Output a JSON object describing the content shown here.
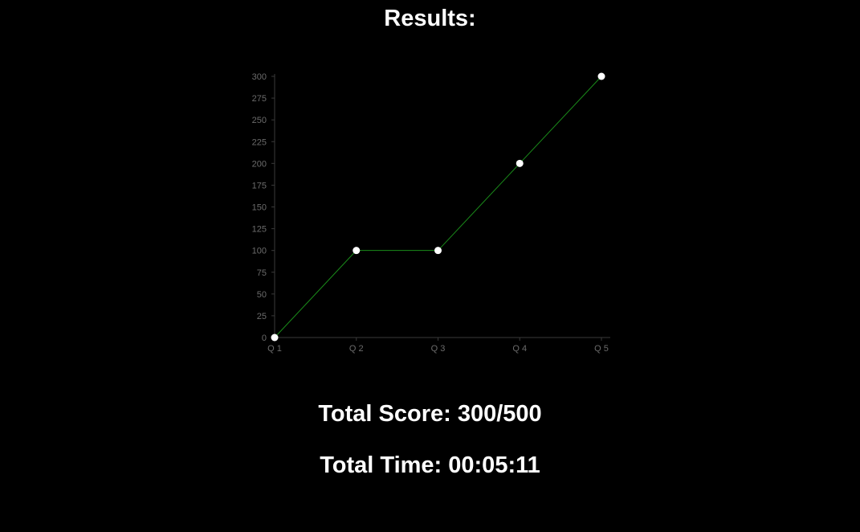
{
  "page": {
    "title": "Results:",
    "total_score": "Total Score: 300/500",
    "total_time": "Total Time: 00:05:11"
  },
  "colors": {
    "background": "#000000",
    "line": "#1a8c1a",
    "points": "#ffffff",
    "axis": "#3a3a3a",
    "tick_labels": "#6b6b6b"
  },
  "chart_data": {
    "type": "line",
    "categories": [
      "Q 1",
      "Q 2",
      "Q 3",
      "Q 4",
      "Q 5"
    ],
    "values": [
      0,
      100,
      100,
      200,
      300
    ],
    "y_ticks": [
      0,
      25,
      50,
      75,
      100,
      125,
      150,
      175,
      200,
      225,
      250,
      275,
      300
    ],
    "ylim": [
      0,
      300
    ],
    "grid": false,
    "legend": "none"
  }
}
